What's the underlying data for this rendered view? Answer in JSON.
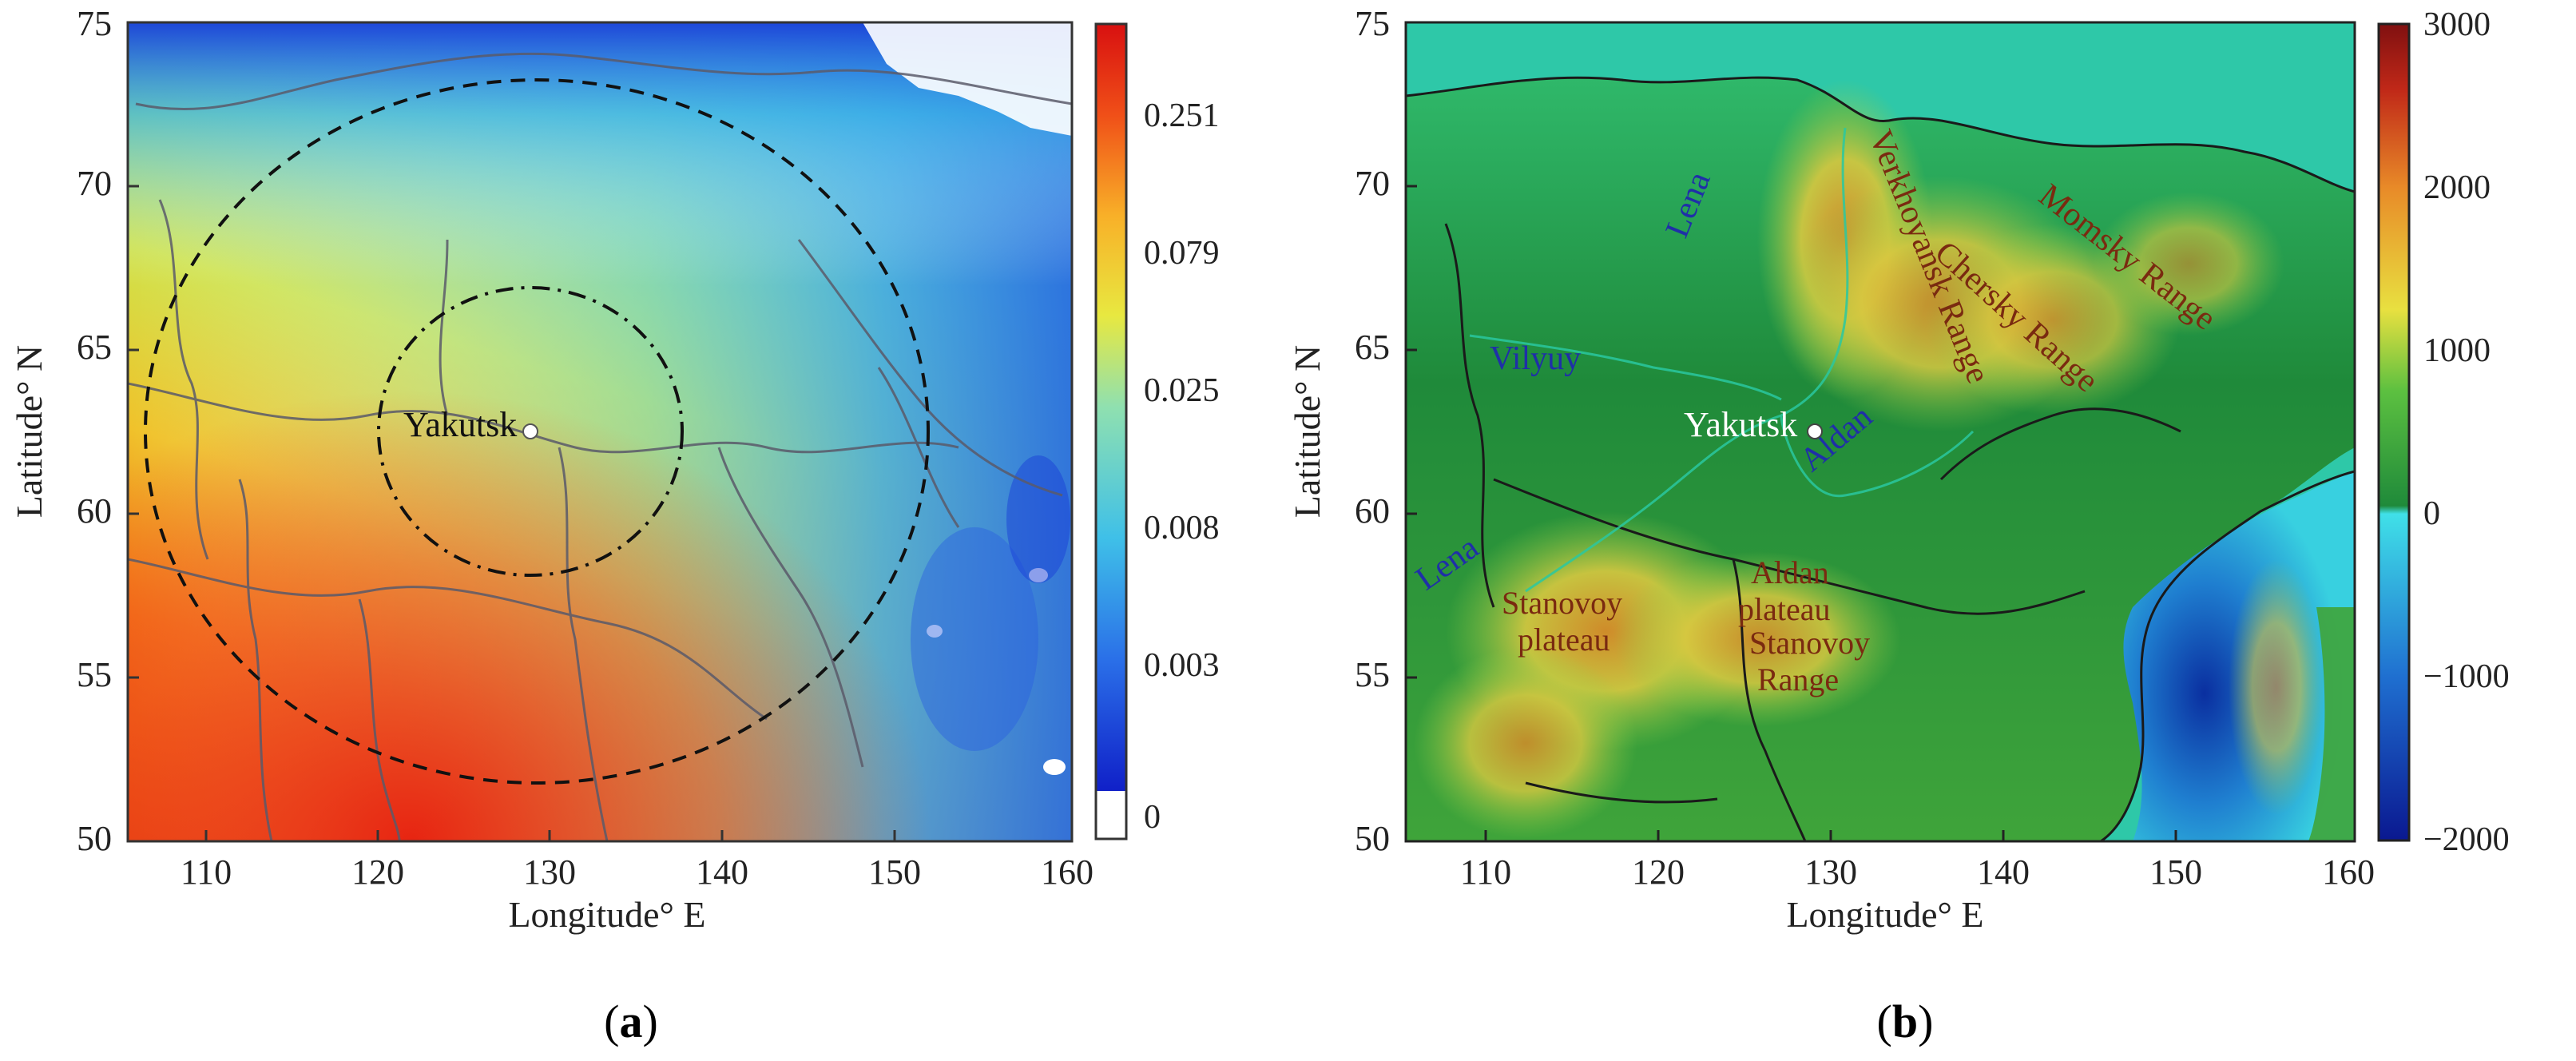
{
  "panels": [
    {
      "id": "a",
      "caption_letter": "a",
      "axis": {
        "xlabel": "Longitude° E",
        "ylabel": "Latitude° N",
        "xticks": [
          "110",
          "120",
          "130",
          "140",
          "150",
          "160"
        ],
        "yticks": [
          "75",
          "70",
          "65",
          "60",
          "55",
          "50"
        ]
      },
      "colorbar": {
        "ticks": [
          "0.251",
          "0.079",
          "0.025",
          "0.008",
          "0.003",
          "0"
        ]
      },
      "labels": {
        "city": "Yakutsk"
      }
    },
    {
      "id": "b",
      "caption_letter": "b",
      "axis": {
        "xlabel": "Longitude° E",
        "ylabel": "Latitude° N",
        "xticks": [
          "110",
          "120",
          "130",
          "140",
          "150",
          "160"
        ],
        "yticks": [
          "75",
          "70",
          "65",
          "60",
          "55",
          "50"
        ]
      },
      "colorbar": {
        "ticks": [
          "3000",
          "2000",
          "1000",
          "0",
          "−1000",
          "−2000"
        ]
      },
      "labels": {
        "city": "Yakutsk",
        "rivers": [
          "Lena",
          "Vilyuy",
          "Aldan",
          "Lena"
        ],
        "ranges": [
          "Verkhoyansk Range",
          "Chersky Range",
          "Momsky Range",
          "Stanovoy plateau",
          "Aldan plateau",
          "Stanovoy Range"
        ]
      }
    }
  ],
  "colors": {
    "river_label": "#1f2fa8",
    "range_label": "#7a2a10",
    "city_marker": "#ffffff"
  }
}
